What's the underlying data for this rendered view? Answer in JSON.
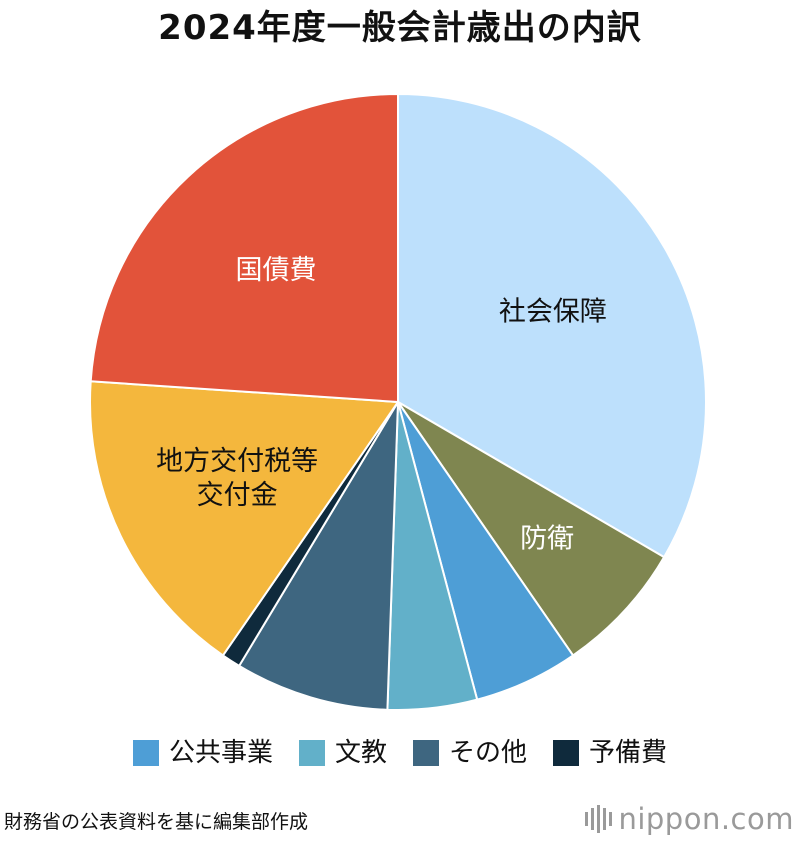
{
  "chart_data": {
    "type": "pie",
    "title": "2024年度一般会計歳出の内訳",
    "start": "top",
    "direction": "clockwise",
    "slices": [
      {
        "key": "shakai",
        "label_lines": [
          "社会保障"
        ],
        "value": 33.5,
        "color": "#bde0fc",
        "text_color": "#111111"
      },
      {
        "key": "boei",
        "label_lines": [
          "防衛"
        ],
        "value": 7.0,
        "color": "#7f8650",
        "text_color": "#ffffff"
      },
      {
        "key": "koukyou",
        "label_lines": [],
        "value": 5.5,
        "color": "#4e9ed6",
        "text_color": "#ffffff"
      },
      {
        "key": "bunkyo",
        "label_lines": [],
        "value": 4.7,
        "color": "#62b0c9",
        "text_color": "#ffffff"
      },
      {
        "key": "sonota",
        "label_lines": [],
        "value": 8.1,
        "color": "#3e6680",
        "text_color": "#ffffff"
      },
      {
        "key": "yobi",
        "label_lines": [],
        "value": 1.0,
        "color": "#0f2a3c",
        "text_color": "#ffffff"
      },
      {
        "key": "chiho",
        "label_lines": [
          "地方交付税等",
          "交付金"
        ],
        "value": 16.5,
        "color": "#f4b73d",
        "text_color": "#111111"
      },
      {
        "key": "kokusai",
        "label_lines": [
          "国債費"
        ],
        "value": 24.0,
        "color": "#e2533a",
        "text_color": "#ffffff"
      }
    ],
    "legend": [
      {
        "label": "公共事業",
        "color": "#4e9ed6"
      },
      {
        "label": "文教",
        "color": "#62b0c9"
      },
      {
        "label": "その他",
        "color": "#3e6680"
      },
      {
        "label": "予備費",
        "color": "#0f2a3c"
      }
    ],
    "legend_position": "bottom"
  },
  "source_note": "財務省の公表資料を基に編集部作成",
  "brand": {
    "name": "nippon",
    "suffix": ".com",
    "name_color": "#9a9a9a",
    "suffix_color": "#9a9a9a"
  }
}
